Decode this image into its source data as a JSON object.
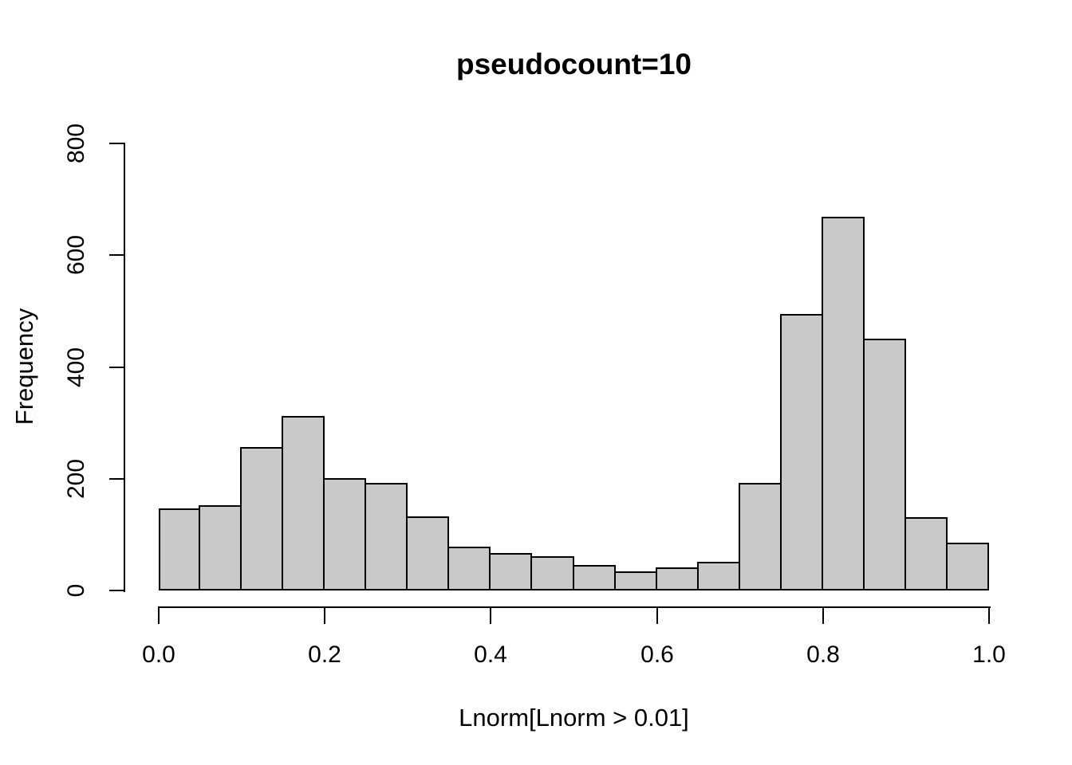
{
  "chart_data": {
    "type": "bar",
    "subtype": "histogram",
    "title": "pseudocount=10",
    "xlabel": "Lnorm[Lnorm > 0.01]",
    "ylabel": "Frequency",
    "bin_edges": [
      0.0,
      0.05,
      0.1,
      0.15,
      0.2,
      0.25,
      0.3,
      0.35,
      0.4,
      0.45,
      0.5,
      0.55,
      0.6,
      0.65,
      0.7,
      0.75,
      0.8,
      0.85,
      0.9,
      0.95,
      1.0
    ],
    "categories": [
      "0.00-0.05",
      "0.05-0.10",
      "0.10-0.15",
      "0.15-0.20",
      "0.20-0.25",
      "0.25-0.30",
      "0.30-0.35",
      "0.35-0.40",
      "0.40-0.45",
      "0.45-0.50",
      "0.50-0.55",
      "0.55-0.60",
      "0.60-0.65",
      "0.65-0.70",
      "0.70-0.75",
      "0.75-0.80",
      "0.80-0.85",
      "0.85-0.90",
      "0.90-0.95",
      "0.95-1.00"
    ],
    "values": [
      147,
      153,
      256,
      313,
      201,
      192,
      133,
      79,
      67,
      61,
      45,
      34,
      41,
      52,
      193,
      495,
      669,
      451,
      131,
      86
    ],
    "x_ticks": [
      "0.0",
      "0.2",
      "0.4",
      "0.6",
      "0.8",
      "1.0"
    ],
    "y_ticks": [
      "0",
      "200",
      "400",
      "600",
      "800"
    ],
    "xlim": [
      0.0,
      1.0
    ],
    "ylim": [
      0,
      800
    ],
    "grid": "off",
    "legend": "none",
    "bar_fill": "#C9C9C9",
    "bar_border": "#000000",
    "axis_color": "#000000",
    "background": "#FFFFFF"
  }
}
